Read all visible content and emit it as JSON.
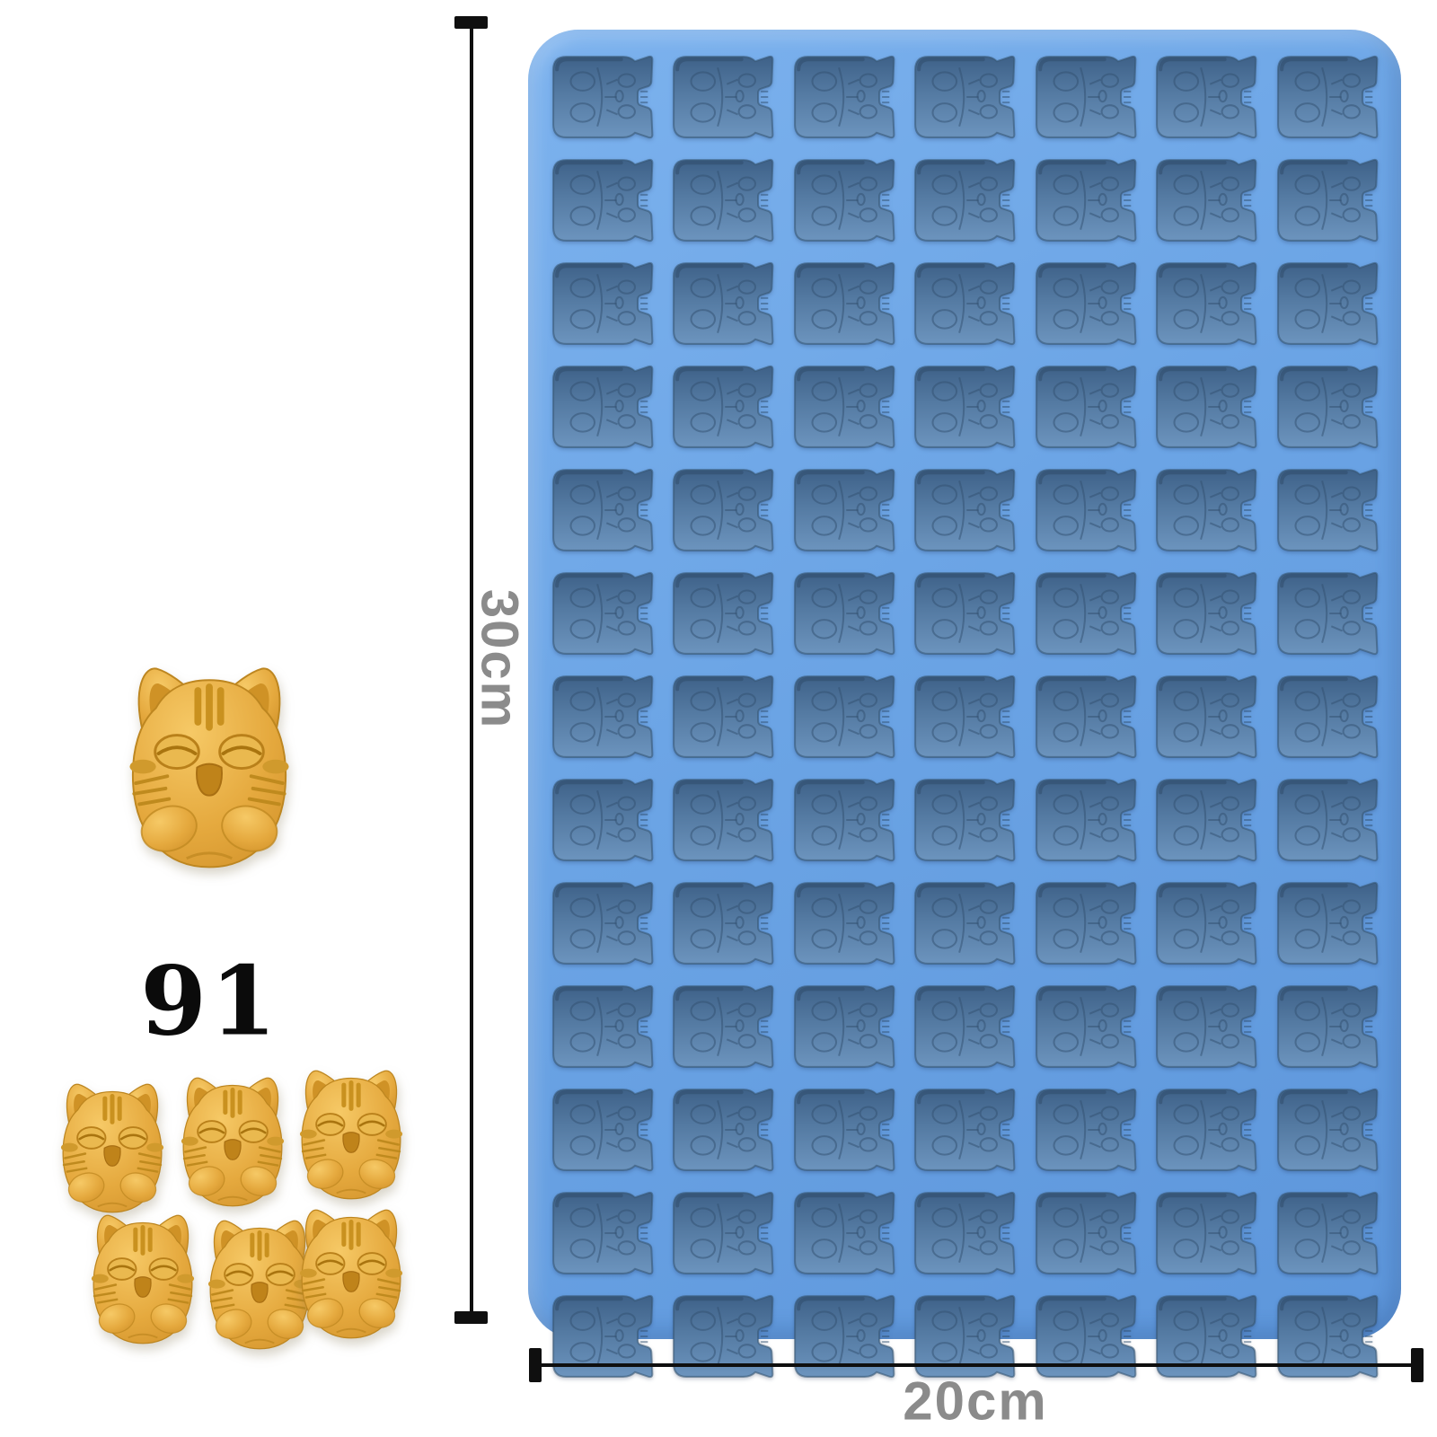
{
  "mold": {
    "rows": 13,
    "columns": 7,
    "cavity_count": 91,
    "cavity_shape": "cat",
    "body_color": "#6ba4e5",
    "cavity_color": "#547aa2"
  },
  "dimensions": {
    "height_label": "30cm",
    "width_label": "20cm",
    "text_color": "#8b8b8b",
    "line_color": "#0f0f0f"
  },
  "count_label": {
    "value": "91",
    "color": "#0b0b0b"
  },
  "gummies": {
    "color": "#e2a339",
    "large_sample_count": 1,
    "small_sample_count": 6
  }
}
